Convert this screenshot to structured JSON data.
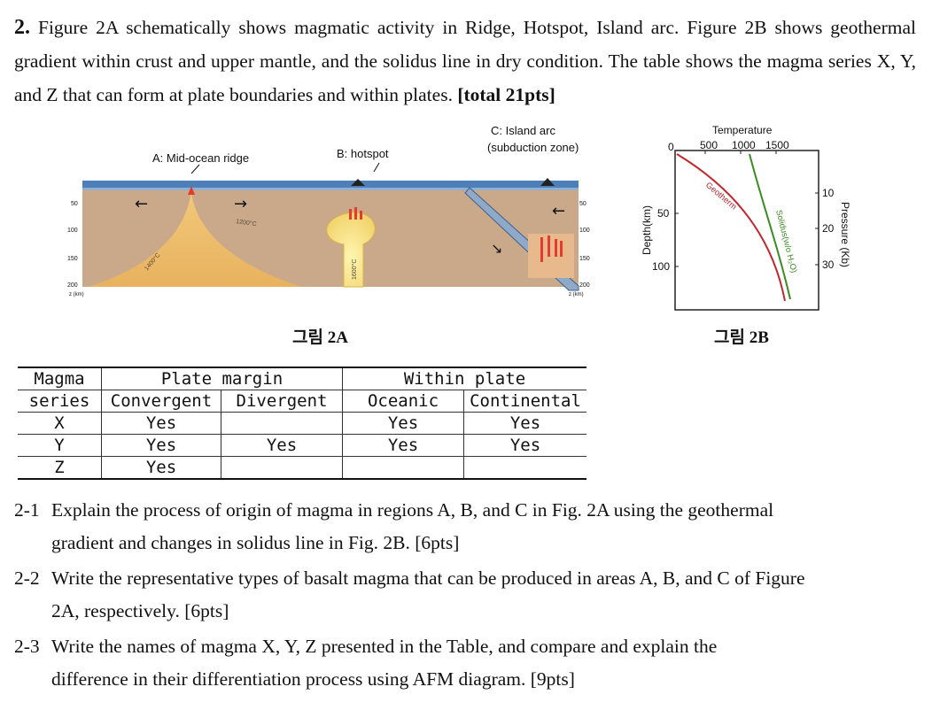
{
  "intro": {
    "number": "2.",
    "text": "Figure 2A schematically shows magmatic activity in Ridge, Hotspot, Island arc. Figure 2B shows geothermal gradient within crust and upper mantle, and the solidus line in dry condition. The table shows the magma series X, Y, and Z that can form at plate boundaries and within plates.",
    "total": "[total 21pts]"
  },
  "fig2a": {
    "label_a": "A: Mid-ocean ridge",
    "label_b": "B: hotspot",
    "label_c1": "C: Island arc",
    "label_c2": "(subduction zone)",
    "iso_1200": "1200°C",
    "iso_1400": "1400°C",
    "iso_1600": "1600°C",
    "depth_ticks": [
      "50",
      "100",
      "150",
      "200"
    ],
    "depth_unit": "z (km)",
    "caption": "그림 2A"
  },
  "fig2b": {
    "top_label": "Temperature",
    "temp_ticks": [
      "0",
      "500",
      "1000",
      "1500"
    ],
    "y_label": "Depth(km)",
    "depth_ticks": [
      "50",
      "100"
    ],
    "right_label": "Pressure (Kb)",
    "pressure_ticks": [
      "10",
      "20",
      "30"
    ],
    "geotherm_label": "Geotherm",
    "solidus_label": "Solidus(w/o H₂O)",
    "geotherm_color": "#c0282d",
    "solidus_color": "#3a8c22",
    "caption": "그림 2B"
  },
  "table": {
    "h_magma": "Magma",
    "h_series": "series",
    "h_plate_margin": "Plate margin",
    "h_within_plate": "Within plate",
    "h_convergent": "Convergent",
    "h_divergent": "Divergent",
    "h_oceanic": "Oceanic",
    "h_continental": "Continental",
    "rows": [
      {
        "series": "X",
        "convergent": "Yes",
        "divergent": "",
        "oceanic": "Yes",
        "continental": "Yes"
      },
      {
        "series": "Y",
        "convergent": "Yes",
        "divergent": "Yes",
        "oceanic": "Yes",
        "continental": "Yes"
      },
      {
        "series": "Z",
        "convergent": "Yes",
        "divergent": "",
        "oceanic": "",
        "continental": ""
      }
    ]
  },
  "questions": [
    {
      "num": "2-1",
      "line1": "Explain the process of origin of magma in regions A, B, and C in Fig. 2A using the geothermal",
      "line2": "gradient and changes in solidus line in Fig. 2B. [6pts]"
    },
    {
      "num": "2-2",
      "line1": "Write the representative types of basalt magma that can be produced in areas A, B, and C of Figure",
      "line2": "2A, respectively. [6pts]"
    },
    {
      "num": "2-3",
      "line1": "Write the names of magma X, Y, Z presented in the Table, and compare and explain the",
      "line2": "difference in their differentiation process using AFM diagram. [9pts]"
    }
  ]
}
